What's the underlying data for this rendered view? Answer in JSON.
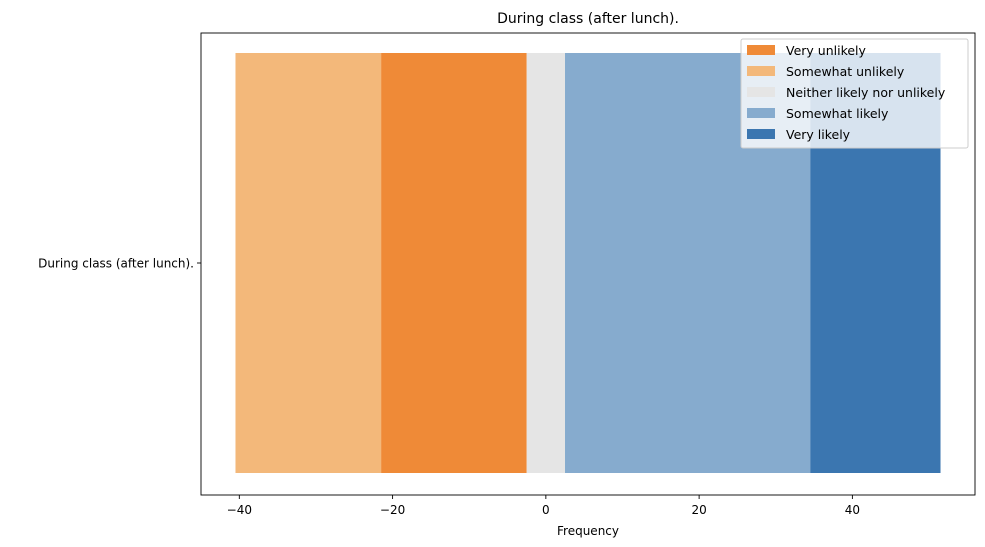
{
  "chart_data": {
    "type": "bar",
    "orientation": "horizontal",
    "stacked": true,
    "diverging": true,
    "title": "During class (after lunch).",
    "xlabel": "Frequency",
    "ylabel": "",
    "categories": [
      "During class (after lunch)."
    ],
    "xlim": [
      -45,
      56
    ],
    "xticks": [
      -40,
      -20,
      0,
      20,
      40
    ],
    "xtick_labels": [
      "−40",
      "−20",
      "0",
      "20",
      "40"
    ],
    "grid": false,
    "legend_position": "top-right",
    "series": [
      {
        "name": "Very unlikely",
        "color": "#ef8a37",
        "segments": [
          [
            -21.5,
            -2.5
          ]
        ]
      },
      {
        "name": "Somewhat unlikely",
        "color": "#f3b87a",
        "segments": [
          [
            -40.5,
            -21.5
          ]
        ]
      },
      {
        "name": "Neither likely nor unlikely",
        "color": "#e5e5e5",
        "segments": [
          [
            -2.5,
            2.5
          ]
        ]
      },
      {
        "name": "Somewhat likely",
        "color": "#86abce",
        "segments": [
          [
            2.5,
            34.5
          ]
        ]
      },
      {
        "name": "Very likely",
        "color": "#3b76b0",
        "segments": [
          [
            34.5,
            51.5
          ]
        ]
      }
    ],
    "values": {
      "Very unlikely": 19,
      "Somewhat unlikely": 19,
      "Neither likely nor unlikely": 5,
      "Somewhat likely": 32,
      "Very likely": 17
    }
  }
}
